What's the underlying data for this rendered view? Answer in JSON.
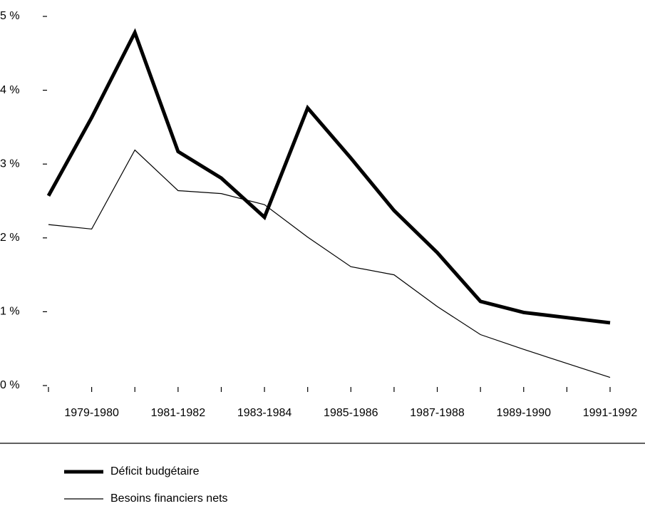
{
  "chart_data": {
    "type": "line",
    "categories": [
      null,
      "1979-1980",
      null,
      "1981-1982",
      null,
      "1983-1984",
      null,
      "1985-1986",
      null,
      "1987-1988",
      null,
      "1989-1990",
      null,
      "1991-1992"
    ],
    "series": [
      {
        "name": "Déficit budgétaire",
        "color": "#000000",
        "values": [
          2.57,
          3.63,
          4.78,
          3.17,
          2.81,
          2.28,
          3.76,
          3.08,
          2.37,
          1.8,
          1.14,
          0.99,
          0.92,
          0.85
        ]
      },
      {
        "name": "Besoins financiers nets",
        "color": "#000000",
        "values": [
          2.18,
          2.12,
          3.19,
          2.64,
          2.6,
          2.45,
          2.01,
          1.61,
          1.5,
          1.07,
          0.69,
          0.49,
          0.3,
          0.11
        ]
      }
    ],
    "ylim": [
      0,
      5
    ],
    "yticks": [
      {
        "value": 0,
        "label": "0 %"
      },
      {
        "value": 1,
        "label": "1 %"
      },
      {
        "value": 2,
        "label": "2 %"
      },
      {
        "value": 3,
        "label": "3 %"
      },
      {
        "value": 4,
        "label": "4 %"
      },
      {
        "value": 5,
        "label": "5 %"
      }
    ],
    "legend": "bottom-left"
  }
}
